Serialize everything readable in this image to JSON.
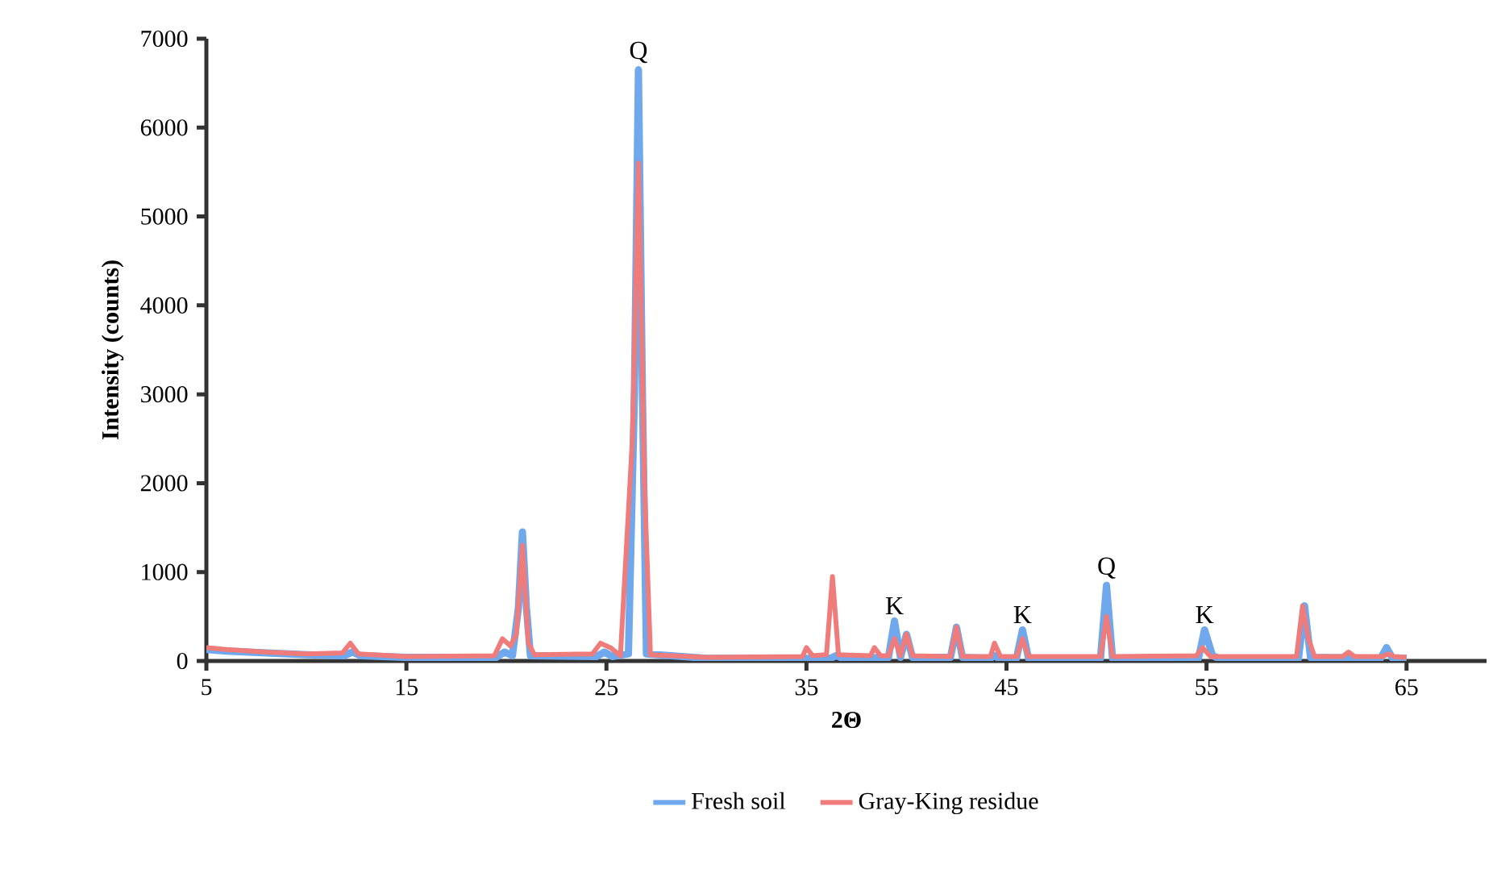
{
  "chart_data": {
    "type": "line",
    "xlabel": "2Θ",
    "ylabel": "Intensity (counts)",
    "xlim": [
      5,
      69
    ],
    "ylim": [
      0,
      7000
    ],
    "xticks": [
      5,
      15,
      25,
      35,
      45,
      55,
      65
    ],
    "yticks": [
      0,
      1000,
      2000,
      3000,
      4000,
      5000,
      6000,
      7000
    ],
    "grid": false,
    "legend": "bottom",
    "marker": "none",
    "line_style": "solid",
    "series": [
      {
        "name": "Fresh soil",
        "color": "#6fa8ec",
        "x": [
          5,
          6,
          8,
          10,
          11.9,
          12.3,
          12.7,
          15,
          19.5,
          19.9,
          20.3,
          20.6,
          20.8,
          21.0,
          21.2,
          24.5,
          24.9,
          25.3,
          26.1,
          26.4,
          26.6,
          26.8,
          27.0,
          30,
          36.2,
          36.5,
          36.8,
          39.1,
          39.4,
          39.7,
          40.0,
          40.3,
          42.2,
          42.5,
          42.8,
          44.2,
          44.4,
          44.6,
          45.5,
          45.8,
          46.1,
          49.7,
          50.0,
          50.3,
          54.6,
          54.9,
          55.3,
          55.6,
          59.6,
          59.9,
          60.2,
          63.7,
          64.0,
          64.3,
          65
        ],
        "values": [
          130,
          110,
          90,
          70,
          60,
          100,
          60,
          40,
          40,
          100,
          60,
          600,
          1450,
          600,
          60,
          50,
          100,
          50,
          80,
          3000,
          6650,
          3000,
          80,
          30,
          30,
          60,
          30,
          40,
          450,
          40,
          300,
          40,
          40,
          380,
          40,
          30,
          60,
          30,
          30,
          350,
          30,
          30,
          850,
          30,
          30,
          350,
          60,
          30,
          30,
          620,
          40,
          30,
          150,
          30,
          30
        ]
      },
      {
        "name": "Gray-King residue",
        "color": "#ef7b7b",
        "x": [
          5,
          6,
          8,
          10,
          11.8,
          12.2,
          12.6,
          15,
          19.4,
          19.8,
          20.2,
          20.5,
          20.8,
          21.1,
          21.4,
          24.3,
          24.7,
          25.2,
          25.7,
          26.3,
          26.6,
          26.9,
          27.2,
          30,
          34.8,
          35,
          35.3,
          36.0,
          36.3,
          36.6,
          38.2,
          38.4,
          38.7,
          39.1,
          39.4,
          39.7,
          40.0,
          40.3,
          42.2,
          42.5,
          42.8,
          44.2,
          44.4,
          44.7,
          45.5,
          45.8,
          46.1,
          49.7,
          50.0,
          50.3,
          54.5,
          54.8,
          55.2,
          59.5,
          59.8,
          60.1,
          60.4,
          61.8,
          62.1,
          62.4,
          63.8,
          64.1,
          64.4,
          65
        ],
        "values": [
          150,
          130,
          100,
          80,
          90,
          200,
          80,
          50,
          60,
          250,
          170,
          300,
          1300,
          200,
          70,
          80,
          200,
          150,
          60,
          2500,
          5600,
          2000,
          70,
          40,
          50,
          150,
          60,
          70,
          950,
          70,
          60,
          150,
          60,
          60,
          250,
          60,
          300,
          60,
          50,
          380,
          50,
          50,
          200,
          50,
          50,
          250,
          50,
          50,
          500,
          50,
          60,
          150,
          50,
          50,
          620,
          250,
          50,
          50,
          100,
          50,
          50,
          80,
          50,
          40
        ]
      }
    ],
    "annotations": [
      {
        "text": "Q",
        "x": 26.6,
        "y": 6650
      },
      {
        "text": "K",
        "x": 39.4,
        "y": 450
      },
      {
        "text": "K",
        "x": 45.8,
        "y": 350
      },
      {
        "text": "Q",
        "x": 50.0,
        "y": 850
      },
      {
        "text": "K",
        "x": 54.9,
        "y": 350
      }
    ]
  }
}
